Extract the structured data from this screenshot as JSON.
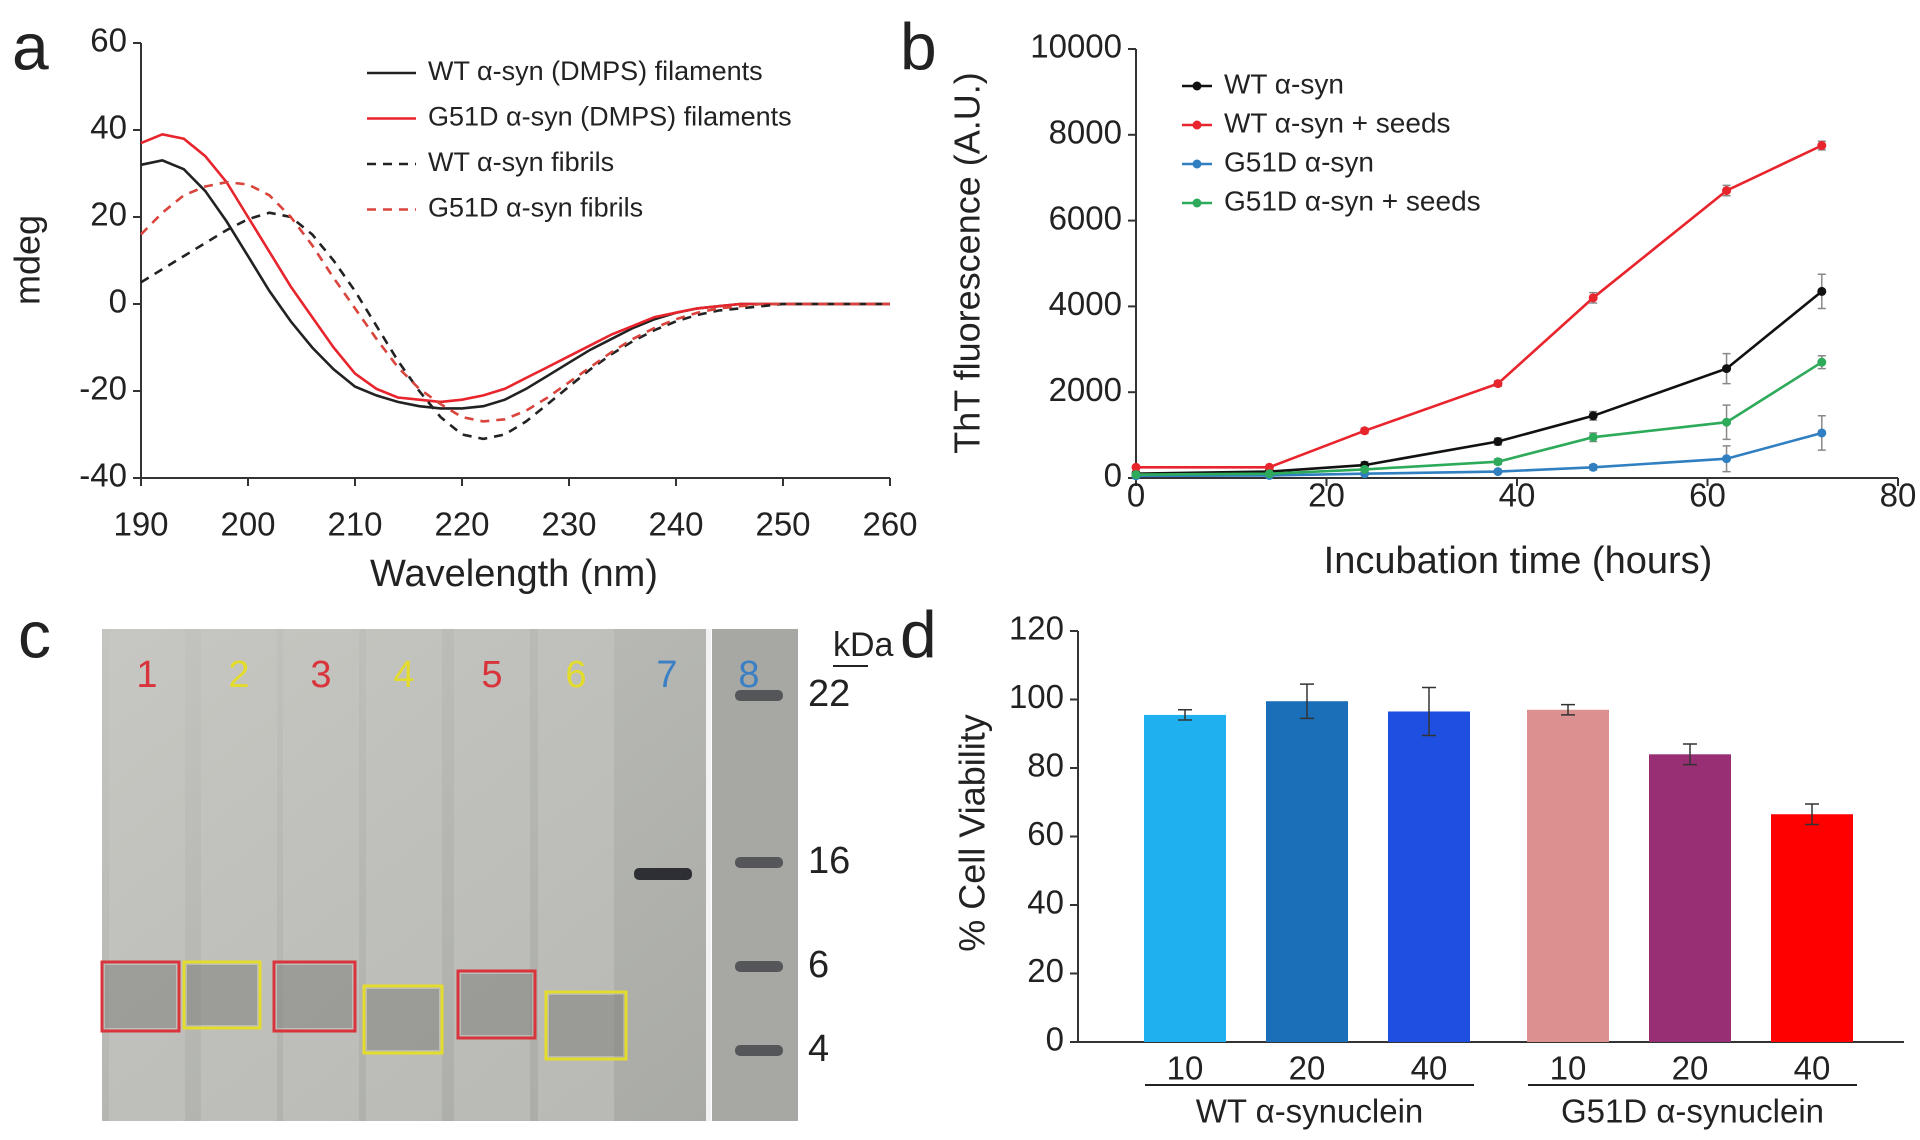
{
  "chart_data": [
    {
      "type": "line",
      "panel_label": "a",
      "xlabel": "Wavelength (nm)",
      "ylabel": "mdeg",
      "x": [
        190,
        192,
        194,
        196,
        198,
        200,
        202,
        204,
        206,
        208,
        210,
        212,
        214,
        216,
        218,
        220,
        222,
        224,
        226,
        228,
        230,
        232,
        234,
        236,
        238,
        240,
        242,
        244,
        246,
        248,
        250,
        252,
        254,
        256,
        258,
        260
      ],
      "xlim": [
        190,
        260
      ],
      "xticks": [
        190,
        200,
        210,
        220,
        230,
        240,
        250,
        260
      ],
      "ylim": [
        -40,
        60
      ],
      "yticks": [
        -40,
        -20,
        0,
        20,
        40,
        60
      ],
      "series": [
        {
          "name": "WT  α-syn (DMPS) filaments",
          "color": "#222222",
          "dashed": false,
          "values": [
            32,
            33,
            31,
            26,
            19,
            11,
            3,
            -4,
            -10,
            -15,
            -19,
            -21,
            -22.5,
            -23.5,
            -24,
            -24,
            -23.5,
            -22,
            -19.5,
            -16.5,
            -13.5,
            -10.5,
            -8,
            -5.5,
            -3.5,
            -2,
            -1,
            -0.5,
            0,
            0,
            0,
            0,
            0,
            0,
            0,
            0
          ]
        },
        {
          "name": "G51D  α-syn (DMPS) filaments",
          "color": "#e8242c",
          "dashed": false,
          "values": [
            37,
            39,
            38,
            34,
            28,
            20,
            12,
            4,
            -3,
            -10,
            -16,
            -19.5,
            -21.5,
            -22,
            -22.5,
            -22,
            -21,
            -19.5,
            -17,
            -14.5,
            -12,
            -9.5,
            -7,
            -5,
            -3,
            -2,
            -1,
            -0.5,
            0,
            0,
            0,
            0,
            0,
            0,
            0,
            0
          ]
        },
        {
          "name": "WT α-syn fibrils",
          "color": "#222222",
          "dashed": true,
          "values": [
            5,
            8,
            11,
            14,
            17,
            19.5,
            21,
            20,
            16,
            10,
            3,
            -5,
            -13,
            -20,
            -26,
            -30,
            -31,
            -30,
            -27,
            -23,
            -19,
            -15,
            -11.5,
            -8.5,
            -6,
            -4,
            -2.5,
            -1.5,
            -1,
            -0.5,
            0,
            0,
            0,
            0,
            0,
            0
          ]
        },
        {
          "name": "G51D α-syn fibrils",
          "color": "#d9443c",
          "dashed": true,
          "values": [
            16,
            21,
            25,
            27,
            28,
            27.5,
            25,
            20,
            13.5,
            6,
            -1,
            -8,
            -14.5,
            -19.5,
            -23,
            -26,
            -27,
            -26.5,
            -24.5,
            -21.5,
            -18,
            -14.5,
            -11,
            -8,
            -5.5,
            -3.5,
            -2,
            -1,
            -0.5,
            0,
            0,
            0,
            0,
            0,
            0,
            0
          ]
        }
      ]
    },
    {
      "type": "line",
      "panel_label": "b",
      "xlabel": "Incubation time (hours)",
      "ylabel": "ThT fluorescence (A.U.)",
      "x": [
        0,
        14,
        24,
        38,
        48,
        62,
        72
      ],
      "xlim": [
        0,
        80
      ],
      "xticks": [
        0,
        20,
        40,
        60,
        80
      ],
      "ylim": [
        0,
        10000
      ],
      "yticks": [
        0,
        2000,
        4000,
        6000,
        8000,
        10000
      ],
      "markers": true,
      "series": [
        {
          "name": "WT α-syn",
          "color": "#111111",
          "values": [
            100,
            150,
            300,
            850,
            1450,
            2550,
            4350
          ],
          "errors": [
            50,
            50,
            80,
            80,
            100,
            350,
            400
          ]
        },
        {
          "name": "WT α-syn  + seeds",
          "color": "#e8242c",
          "values": [
            250,
            250,
            1100,
            2200,
            4200,
            6700,
            7750
          ],
          "errors": [
            30,
            30,
            60,
            60,
            120,
            120,
            100
          ]
        },
        {
          "name": "G51D α-syn",
          "color": "#2f7fc1",
          "values": [
            50,
            60,
            100,
            150,
            250,
            450,
            1050
          ],
          "errors": [
            20,
            20,
            30,
            40,
            60,
            300,
            400
          ]
        },
        {
          "name": "G51D α-syn  + seeds",
          "color": "#2daa5a",
          "values": [
            80,
            100,
            200,
            380,
            950,
            1300,
            2700
          ],
          "errors": [
            20,
            20,
            40,
            60,
            100,
            400,
            150
          ]
        }
      ]
    },
    {
      "type": "gel",
      "panel_label": "c",
      "lanes": [
        "1",
        "2",
        "3",
        "4",
        "5",
        "6",
        "7",
        "8"
      ],
      "lane_colors": [
        "#d9343b",
        "#e4dc2c",
        "#d9343b",
        "#e4dc2c",
        "#d9343b",
        "#e4dc2c",
        "#3b7fc4",
        "#3b7fc4"
      ],
      "unit_label": "kDa",
      "markers": [
        22,
        16,
        6,
        4
      ]
    },
    {
      "type": "bar",
      "panel_label": "d",
      "ylabel": "% Cell Viability",
      "categories": [
        "10",
        "20",
        "40",
        "10",
        "20",
        "40"
      ],
      "groups": [
        "WT α-synuclein",
        "G51D α-synuclein"
      ],
      "values": [
        95.5,
        99.5,
        96.5,
        97,
        84,
        66.5
      ],
      "errors": [
        1.5,
        5,
        7,
        1.5,
        3,
        3
      ],
      "colors": [
        "#1fb0ef",
        "#1a6fb8",
        "#1f4fe0",
        "#dc9190",
        "#982e73",
        "#ff0000"
      ],
      "ylim": [
        0,
        120
      ],
      "yticks": [
        0,
        20,
        40,
        60,
        80,
        100,
        120
      ]
    }
  ]
}
